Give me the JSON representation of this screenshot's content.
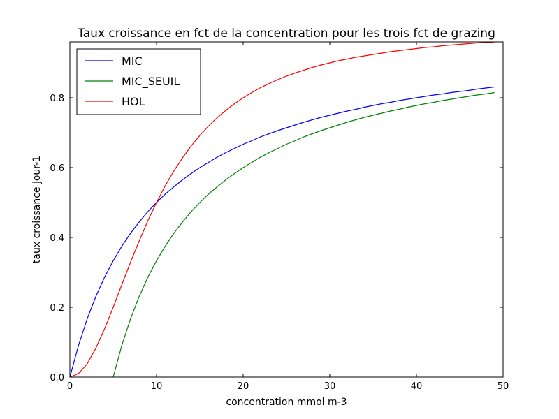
{
  "chart_data": {
    "type": "line",
    "title": "Taux croissance en fct de la concentration pour les trois fct de grazing",
    "xlabel": "concentration mmol m-3",
    "ylabel": "taux croissance jour-1",
    "xlim": [
      0,
      50
    ],
    "ylim": [
      0,
      0.96
    ],
    "xticks": [
      0,
      10,
      20,
      30,
      40,
      50
    ],
    "xtick_labels": [
      "0",
      "10",
      "20",
      "30",
      "40",
      "50"
    ],
    "yticks": [
      0,
      0.2,
      0.4,
      0.6,
      0.8
    ],
    "ytick_labels": [
      "0.0",
      "0.2",
      "0.4",
      "0.6",
      "0.8"
    ],
    "grid": false,
    "legend_position": "top-left",
    "x": [
      0,
      1,
      2,
      3,
      4,
      5,
      6,
      7,
      8,
      9,
      10,
      11,
      12,
      13,
      14,
      15,
      16,
      17,
      18,
      19,
      20,
      21,
      22,
      23,
      24,
      25,
      26,
      27,
      28,
      29,
      30,
      31,
      32,
      33,
      34,
      35,
      36,
      37,
      38,
      39,
      40,
      41,
      42,
      43,
      44,
      45,
      46,
      47,
      48,
      49
    ],
    "series": [
      {
        "name": "MIC",
        "color": "#0000ff",
        "values": [
          0.0,
          0.091,
          0.167,
          0.231,
          0.286,
          0.333,
          0.375,
          0.412,
          0.444,
          0.474,
          0.5,
          0.524,
          0.545,
          0.565,
          0.583,
          0.6,
          0.615,
          0.63,
          0.643,
          0.655,
          0.667,
          0.677,
          0.688,
          0.697,
          0.706,
          0.714,
          0.722,
          0.73,
          0.737,
          0.744,
          0.75,
          0.756,
          0.762,
          0.767,
          0.773,
          0.778,
          0.783,
          0.787,
          0.792,
          0.796,
          0.8,
          0.804,
          0.808,
          0.811,
          0.815,
          0.818,
          0.821,
          0.825,
          0.828,
          0.831
        ]
      },
      {
        "name": "MIC_SEUIL",
        "color": "#008000",
        "values": [
          null,
          null,
          null,
          null,
          null,
          0.0,
          0.091,
          0.167,
          0.231,
          0.286,
          0.333,
          0.375,
          0.412,
          0.444,
          0.474,
          0.5,
          0.524,
          0.545,
          0.565,
          0.583,
          0.6,
          0.615,
          0.63,
          0.643,
          0.655,
          0.667,
          0.677,
          0.688,
          0.697,
          0.706,
          0.714,
          0.722,
          0.73,
          0.737,
          0.744,
          0.75,
          0.756,
          0.762,
          0.767,
          0.773,
          0.778,
          0.783,
          0.787,
          0.792,
          0.796,
          0.8,
          0.804,
          0.808,
          0.811,
          0.815
        ]
      },
      {
        "name": "HOL",
        "color": "#ff0000",
        "values": [
          0.0,
          0.01,
          0.038,
          0.083,
          0.138,
          0.2,
          0.265,
          0.329,
          0.39,
          0.448,
          0.5,
          0.548,
          0.59,
          0.628,
          0.662,
          0.692,
          0.719,
          0.743,
          0.764,
          0.783,
          0.8,
          0.815,
          0.829,
          0.841,
          0.852,
          0.862,
          0.871,
          0.879,
          0.887,
          0.894,
          0.9,
          0.906,
          0.911,
          0.916,
          0.92,
          0.924,
          0.928,
          0.932,
          0.935,
          0.938,
          0.941,
          0.944,
          0.946,
          0.949,
          0.951,
          0.953,
          0.955,
          0.957,
          0.958,
          0.96
        ]
      }
    ]
  }
}
